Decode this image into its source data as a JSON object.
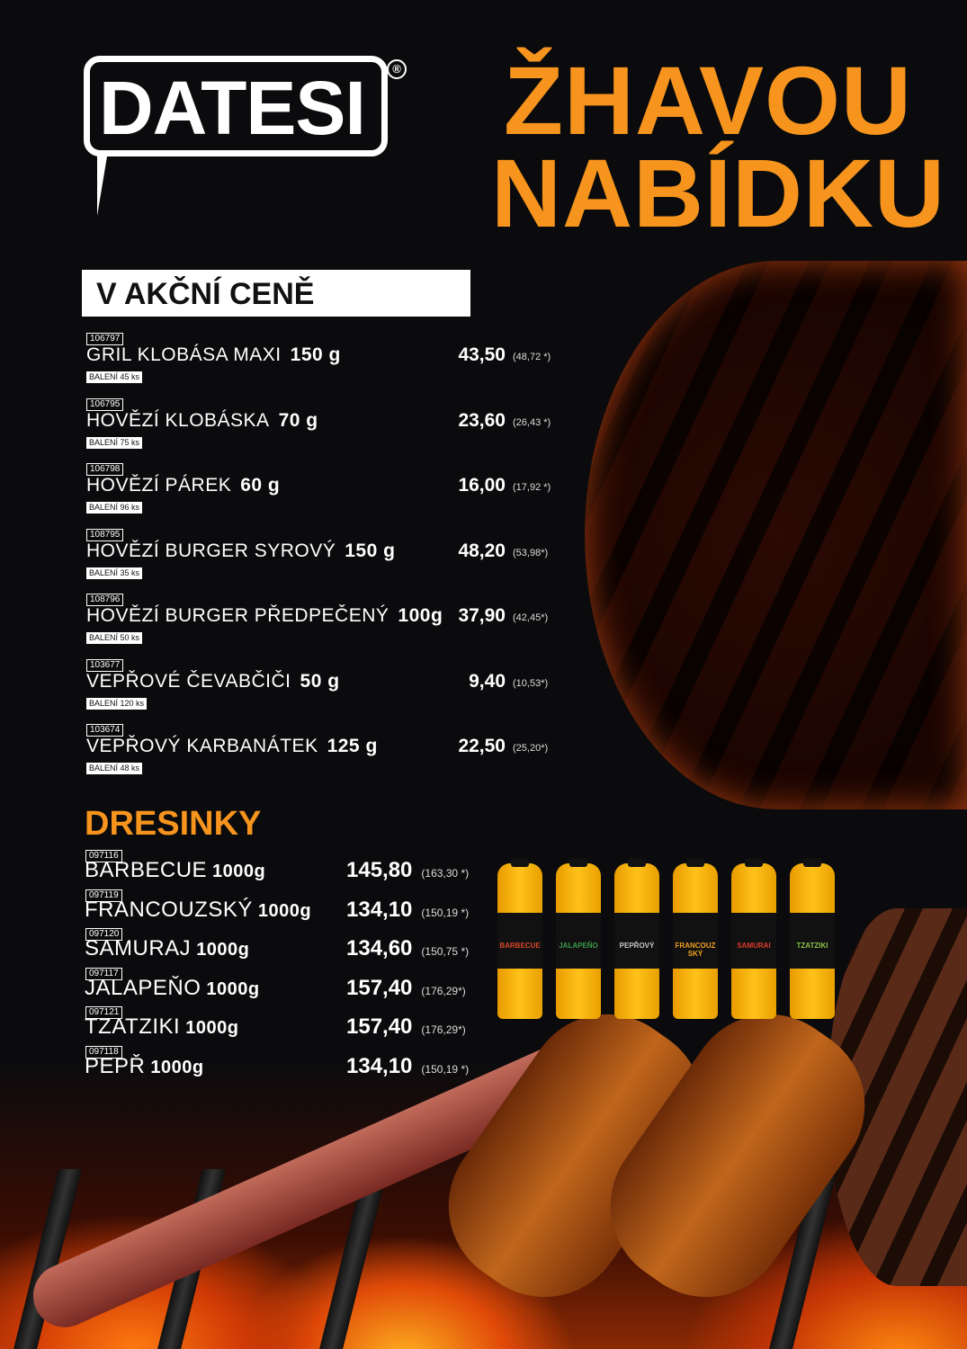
{
  "brand": {
    "logo": "DATESI",
    "registered": "®"
  },
  "headline": {
    "line1": "ŽHAVOU",
    "line2": "NABÍDKU"
  },
  "section_promo": {
    "title": "V AKČNÍ CENĚ",
    "items": [
      {
        "code": "106797",
        "name": "GRIL KLOBÁSA MAXI",
        "weight": "150 g",
        "pack": "BALENÍ 45 ks",
        "price": "43,50",
        "price_vat": "(48,72 *)"
      },
      {
        "code": "106795",
        "name": "HOVĚZÍ KLOBÁSKA",
        "weight": "70 g",
        "pack": "BALENÍ 75 ks",
        "price": "23,60",
        "price_vat": "(26,43 *)"
      },
      {
        "code": "106798",
        "name": "HOVĚZÍ PÁREK",
        "weight": "60 g",
        "pack": "BALENÍ 96 ks",
        "price": "16,00",
        "price_vat": "(17,92 *)"
      },
      {
        "code": "108795",
        "name": "HOVĚZÍ BURGER SYROVÝ",
        "weight": "150 g",
        "pack": "BALENÍ 35 ks",
        "price": "48,20",
        "price_vat": "(53,98*)"
      },
      {
        "code": "108796",
        "name": "HOVĚZÍ BURGER PŘEDPEČENÝ",
        "weight": "100g",
        "pack": "BALENÍ 50 ks",
        "price": "37,90",
        "price_vat": "(42,45*)"
      },
      {
        "code": "103677",
        "name": "VEPŘOVÉ ČEVABČIČI",
        "weight": "50 g",
        "pack": "BALENÍ 120 ks",
        "price": "9,40",
        "price_vat": "(10,53*)"
      },
      {
        "code": "103674",
        "name": "VEPŘOVÝ KARBANÁTEK",
        "weight": "125 g",
        "pack": "BALENÍ 48 ks",
        "price": "22,50",
        "price_vat": "(25,20*)"
      }
    ]
  },
  "section_dressings": {
    "title": "DRESINKY",
    "items": [
      {
        "code": "097116",
        "name": "BARBECUE",
        "weight": "1000g",
        "price": "145,80",
        "price_vat": "(163,30 *)"
      },
      {
        "code": "097119",
        "name": "FRANCOUZSKÝ",
        "weight": "1000g",
        "price": "134,10",
        "price_vat": "(150,19 *)"
      },
      {
        "code": "097120",
        "name": "SAMURAJ",
        "weight": "1000g",
        "price": "134,60",
        "price_vat": "(150,75 *)"
      },
      {
        "code": "097117",
        "name": "JALAPEŇO",
        "weight": "1000g",
        "price": "157,40",
        "price_vat": "(176,29*)"
      },
      {
        "code": "097121",
        "name": "TZATZIKI",
        "weight": "1000g",
        "price": "157,40",
        "price_vat": "(176,29*)"
      },
      {
        "code": "097118",
        "name": "PEPŘ",
        "weight": "1000g",
        "price": "134,10",
        "price_vat": "(150,19 *)"
      }
    ],
    "bottles": [
      {
        "label": "BARBECUE",
        "color": "#d8472a"
      },
      {
        "label": "JALAPEŇO",
        "color": "#3c9a4a"
      },
      {
        "label": "PEPŘOVÝ",
        "color": "#c8c8c8"
      },
      {
        "label": "FRANCOUZSKÝ",
        "color": "#f0a020"
      },
      {
        "label": "SAMURAI",
        "color": "#e03a2a"
      },
      {
        "label": "TZATZIKI",
        "color": "#8cc04a"
      }
    ]
  },
  "colors": {
    "accent": "#f7941d",
    "background": "#0b0b0d"
  }
}
